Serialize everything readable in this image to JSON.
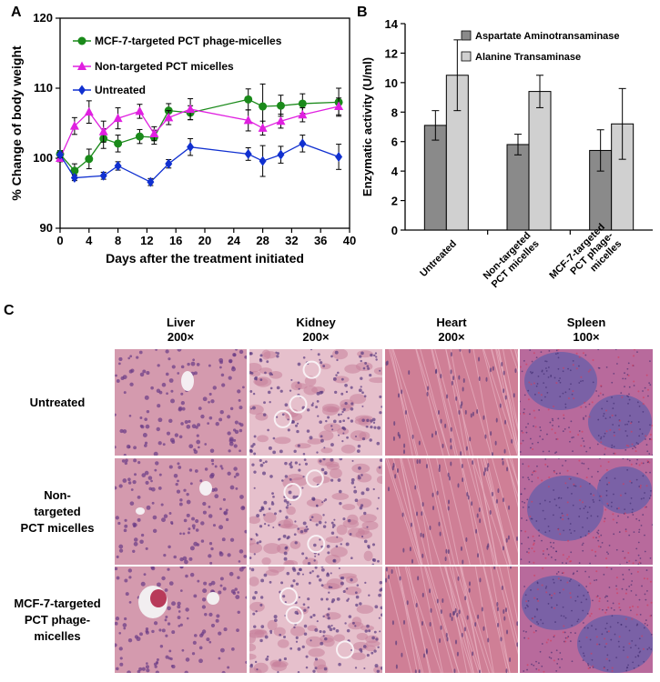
{
  "panel_labels": {
    "a": "A",
    "b": "B",
    "c": "C"
  },
  "chart_data": [
    {
      "type": "line",
      "xlabel": "Days after the treatment initiated",
      "ylabel": "% Change of body weight",
      "xlim": [
        0,
        40
      ],
      "ylim": [
        90,
        120
      ],
      "xticks": [
        0,
        4,
        8,
        12,
        16,
        20,
        24,
        28,
        32,
        36,
        40
      ],
      "yticks": [
        90,
        100,
        110,
        120
      ],
      "legend_position": "top-left",
      "grid": false,
      "series": [
        {
          "name": "MCF-7-targeted PCT phage-micelles",
          "color": "#1a8a1a",
          "marker": "circle",
          "points": [
            {
              "x": 0,
              "y": 100.6,
              "err": 0.5
            },
            {
              "x": 2,
              "y": 98.2,
              "err": 1.0
            },
            {
              "x": 4,
              "y": 99.9,
              "err": 1.4
            },
            {
              "x": 6,
              "y": 102.8,
              "err": 1.4
            },
            {
              "x": 8,
              "y": 102.1,
              "err": 1.2
            },
            {
              "x": 11,
              "y": 103.1,
              "err": 1.0
            },
            {
              "x": 13,
              "y": 103.0,
              "err": 1.0
            },
            {
              "x": 15,
              "y": 106.8,
              "err": 1.0
            },
            {
              "x": 18,
              "y": 106.5,
              "err": 1.0
            },
            {
              "x": 26,
              "y": 108.4,
              "err": 1.5
            },
            {
              "x": 28,
              "y": 107.4,
              "err": 3.2
            },
            {
              "x": 30.5,
              "y": 107.5,
              "err": 1.5
            },
            {
              "x": 33.5,
              "y": 107.8,
              "err": 1.4
            },
            {
              "x": 38.5,
              "y": 108.0,
              "err": 2.0
            }
          ]
        },
        {
          "name": "Non-targeted PCT micelles",
          "color": "#e020e0",
          "marker": "triangle",
          "points": [
            {
              "x": 0,
              "y": 100.0,
              "err": 0.5
            },
            {
              "x": 2,
              "y": 104.6,
              "err": 1.2
            },
            {
              "x": 4,
              "y": 106.6,
              "err": 1.6
            },
            {
              "x": 6,
              "y": 103.8,
              "err": 1.5
            },
            {
              "x": 8,
              "y": 105.7,
              "err": 1.5
            },
            {
              "x": 11,
              "y": 106.7,
              "err": 1.0
            },
            {
              "x": 13,
              "y": 103.5,
              "err": 1.0
            },
            {
              "x": 15,
              "y": 105.8,
              "err": 1.0
            },
            {
              "x": 18,
              "y": 107.0,
              "err": 1.5
            },
            {
              "x": 26,
              "y": 105.4,
              "err": 1.5
            },
            {
              "x": 28,
              "y": 104.3,
              "err": 1.0
            },
            {
              "x": 30.5,
              "y": 105.3,
              "err": 1.0
            },
            {
              "x": 33.5,
              "y": 106.2,
              "err": 1.0
            },
            {
              "x": 38.5,
              "y": 107.4,
              "err": 1.2
            }
          ]
        },
        {
          "name": "Untreated",
          "color": "#1030d0",
          "marker": "diamond",
          "points": [
            {
              "x": 0,
              "y": 100.5,
              "err": 0.4
            },
            {
              "x": 2,
              "y": 97.2,
              "err": 0.4
            },
            {
              "x": 6,
              "y": 97.5,
              "err": 0.5
            },
            {
              "x": 8,
              "y": 98.9,
              "err": 0.6
            },
            {
              "x": 12.5,
              "y": 96.6,
              "err": 0.5
            },
            {
              "x": 15,
              "y": 99.2,
              "err": 0.6
            },
            {
              "x": 18,
              "y": 101.6,
              "err": 1.2
            },
            {
              "x": 26,
              "y": 100.6,
              "err": 0.9
            },
            {
              "x": 28,
              "y": 99.6,
              "err": 2.2
            },
            {
              "x": 30.5,
              "y": 100.5,
              "err": 1.2
            },
            {
              "x": 33.5,
              "y": 102.1,
              "err": 1.2
            },
            {
              "x": 38.5,
              "y": 100.2,
              "err": 1.8
            }
          ]
        }
      ]
    },
    {
      "type": "bar",
      "ylabel": "Enzymatic activity (U/ml)",
      "ylim": [
        0,
        14
      ],
      "yticks": [
        0,
        2,
        4,
        6,
        8,
        10,
        12,
        14
      ],
      "legend_position": "top-right",
      "grid": false,
      "categories": [
        [
          "Untreated"
        ],
        [
          "Non-targeted",
          "PCT micelles"
        ],
        [
          "MCF-7-targeted",
          "PCT phage-",
          "micelles"
        ]
      ],
      "series": [
        {
          "name": "Aspartate Aminotransaminase",
          "color": "#8a8a8a",
          "values": [
            7.1,
            5.8,
            5.4
          ],
          "errors": [
            1.0,
            0.7,
            1.4
          ]
        },
        {
          "name": "Alanine Transaminase",
          "color": "#d0d0d0",
          "values": [
            10.5,
            9.4,
            7.2
          ],
          "errors": [
            2.4,
            1.1,
            2.4
          ]
        }
      ]
    }
  ],
  "histology": {
    "columns": [
      {
        "tissue": "Liver",
        "mag": "200×"
      },
      {
        "tissue": "Kidney",
        "mag": "200×"
      },
      {
        "tissue": "Heart",
        "mag": "200×"
      },
      {
        "tissue": "Spleen",
        "mag": "100×"
      }
    ],
    "rows": [
      [
        "Untreated"
      ],
      [
        "Non-",
        "targeted",
        "PCT micelles"
      ],
      [
        "MCF-7-targeted",
        "PCT phage-",
        "micelles"
      ]
    ]
  }
}
